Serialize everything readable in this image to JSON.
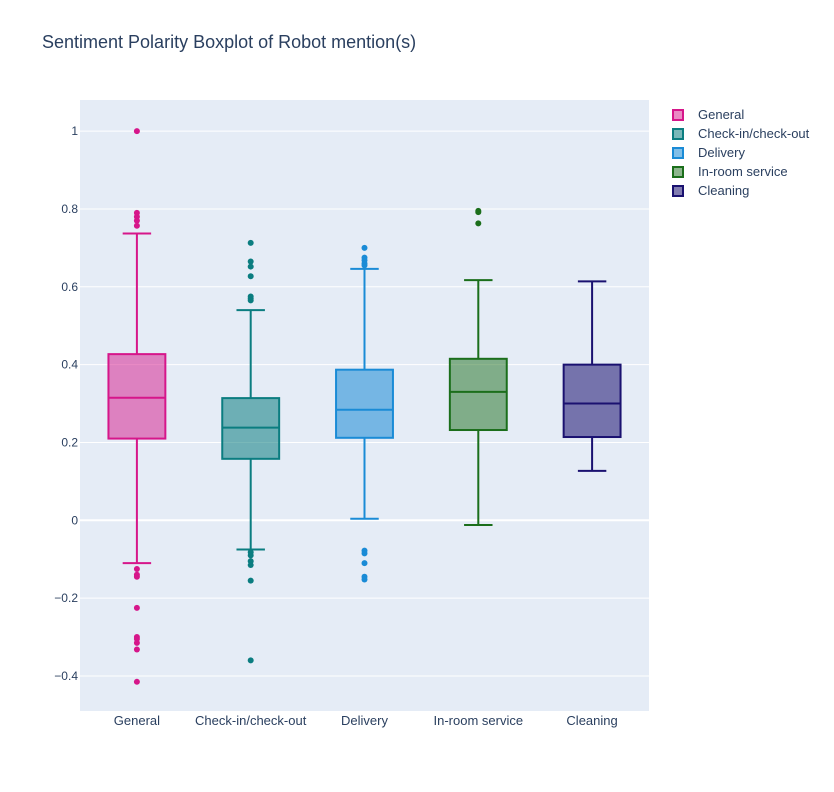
{
  "chart_data": {
    "type": "box",
    "title": "Sentiment Polarity Boxplot of Robot mention(s)",
    "xlabel": "",
    "ylabel": "",
    "ylim": [
      -0.49,
      1.08
    ],
    "yticks": [
      -0.4,
      -0.2,
      0,
      0.2,
      0.4,
      0.6,
      0.8,
      1
    ],
    "ytick_labels": [
      "−0.4",
      "−0.2",
      "0",
      "0.2",
      "0.4",
      "0.6",
      "0.8",
      "1"
    ],
    "legend_position": "top-right",
    "series": [
      {
        "name": "General",
        "color": "#d6168a",
        "fill": "rgba(214, 22, 138, 0.5)",
        "lower_fence": -0.11,
        "q1": 0.21,
        "median": 0.315,
        "q3": 0.427,
        "upper_fence": 0.737,
        "outliers": [
          1.0,
          0.79,
          0.78,
          0.77,
          0.757,
          -0.125,
          -0.14,
          -0.145,
          -0.225,
          -0.3,
          -0.305,
          -0.315,
          -0.332,
          -0.415
        ]
      },
      {
        "name": "Check-in/check-out",
        "color": "#0b7d80",
        "fill": "rgba(11, 125, 128, 0.55)",
        "lower_fence": -0.075,
        "q1": 0.158,
        "median": 0.238,
        "q3": 0.314,
        "upper_fence": 0.54,
        "outliers": [
          0.713,
          0.665,
          0.652,
          0.627,
          0.575,
          0.57,
          0.565,
          -0.082,
          -0.09,
          -0.105,
          -0.115,
          -0.155,
          -0.36
        ]
      },
      {
        "name": "Delivery",
        "color": "#1a8bd6",
        "fill": "rgba(26, 139, 214, 0.55)",
        "lower_fence": 0.004,
        "q1": 0.212,
        "median": 0.284,
        "q3": 0.387,
        "upper_fence": 0.646,
        "outliers": [
          0.7,
          0.675,
          0.668,
          0.66,
          0.655,
          -0.078,
          -0.085,
          -0.11,
          -0.145,
          -0.152
        ]
      },
      {
        "name": "In-room service",
        "color": "#1b6e1b",
        "fill": "rgba(27, 110, 27, 0.5)",
        "lower_fence": -0.012,
        "q1": 0.232,
        "median": 0.33,
        "q3": 0.415,
        "upper_fence": 0.617,
        "outliers": [
          0.795,
          0.792,
          0.763
        ]
      },
      {
        "name": "Cleaning",
        "color": "#1a1170",
        "fill": "rgba(26, 17, 112, 0.55)",
        "lower_fence": 0.127,
        "q1": 0.214,
        "median": 0.3,
        "q3": 0.4,
        "upper_fence": 0.614,
        "outliers": []
      }
    ]
  }
}
